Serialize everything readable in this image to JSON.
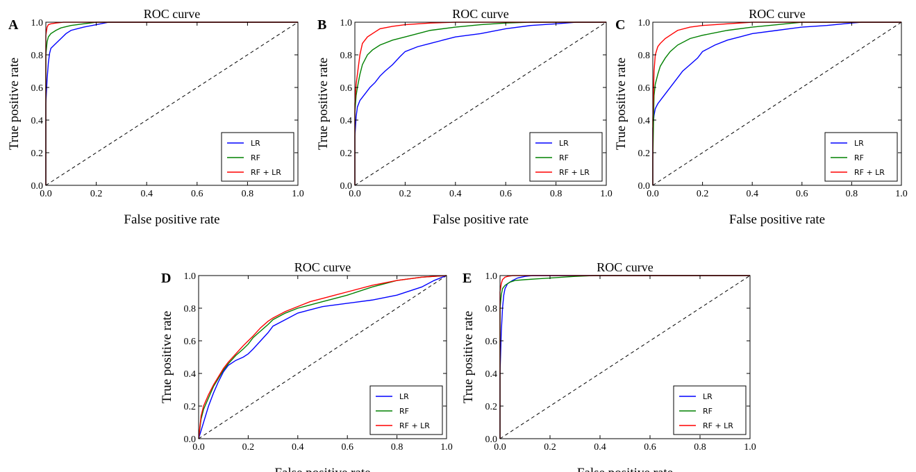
{
  "chart_data": [
    {
      "panel_label": "A",
      "type": "line",
      "title": "ROC curve",
      "xlabel": "False positive rate",
      "ylabel": "True positive rate",
      "xlim": [
        0,
        1
      ],
      "ylim": [
        0,
        1
      ],
      "xticks": [
        "0.0",
        "0.2",
        "0.4",
        "0.6",
        "0.8",
        "1.0"
      ],
      "yticks": [
        "0.0",
        "0.2",
        "0.4",
        "0.6",
        "0.8",
        "1.0"
      ],
      "legend_position": "lower-right",
      "series": [
        {
          "name": "LR",
          "color": "#0000ff",
          "x": [
            0,
            0,
            0.005,
            0.01,
            0.015,
            0.02,
            0.04,
            0.06,
            0.08,
            0.1,
            0.15,
            0.2,
            0.25,
            1.0
          ],
          "y": [
            0,
            0.5,
            0.65,
            0.75,
            0.81,
            0.84,
            0.87,
            0.9,
            0.93,
            0.95,
            0.97,
            0.985,
            1.0,
            1.0
          ]
        },
        {
          "name": "RF",
          "color": "#008000",
          "x": [
            0,
            0,
            0.005,
            0.01,
            0.02,
            0.04,
            0.06,
            0.1,
            0.15,
            0.2,
            1.0
          ],
          "y": [
            0,
            0.8,
            0.88,
            0.91,
            0.93,
            0.95,
            0.965,
            0.98,
            0.99,
            1.0,
            1.0
          ]
        },
        {
          "name": "RF + LR",
          "color": "#ff0000",
          "x": [
            0,
            0,
            0.005,
            0.01,
            0.02,
            0.04,
            0.07,
            1.0
          ],
          "y": [
            0,
            0.92,
            0.97,
            0.985,
            0.99,
            0.995,
            1.0,
            1.0
          ]
        }
      ]
    },
    {
      "panel_label": "B",
      "type": "line",
      "title": "ROC curve",
      "xlabel": "False positive rate",
      "ylabel": "True positive rate",
      "xlim": [
        0,
        1
      ],
      "ylim": [
        0,
        1
      ],
      "xticks": [
        "0.0",
        "0.2",
        "0.4",
        "0.6",
        "0.8",
        "1.0"
      ],
      "yticks": [
        "0.0",
        "0.2",
        "0.4",
        "0.6",
        "0.8",
        "1.0"
      ],
      "legend_position": "lower-right",
      "series": [
        {
          "name": "LR",
          "color": "#0000ff",
          "x": [
            0,
            0,
            0.005,
            0.01,
            0.02,
            0.04,
            0.06,
            0.08,
            0.1,
            0.12,
            0.15,
            0.18,
            0.2,
            0.25,
            0.3,
            0.35,
            0.4,
            0.5,
            0.6,
            0.7,
            0.8,
            0.88,
            1.0
          ],
          "y": [
            0,
            0.3,
            0.42,
            0.48,
            0.52,
            0.56,
            0.6,
            0.63,
            0.67,
            0.7,
            0.74,
            0.79,
            0.82,
            0.85,
            0.87,
            0.89,
            0.91,
            0.93,
            0.96,
            0.98,
            0.99,
            1.0,
            1.0
          ]
        },
        {
          "name": "RF",
          "color": "#008000",
          "x": [
            0,
            0,
            0.005,
            0.01,
            0.02,
            0.03,
            0.05,
            0.07,
            0.1,
            0.15,
            0.2,
            0.3,
            0.4,
            0.5,
            0.6,
            0.7,
            1.0
          ],
          "y": [
            0,
            0.45,
            0.55,
            0.6,
            0.68,
            0.74,
            0.8,
            0.83,
            0.86,
            0.89,
            0.91,
            0.95,
            0.97,
            0.985,
            0.995,
            1.0,
            1.0
          ]
        },
        {
          "name": "RF + LR",
          "color": "#ff0000",
          "x": [
            0,
            0,
            0.005,
            0.01,
            0.02,
            0.03,
            0.05,
            0.08,
            0.1,
            0.15,
            0.2,
            0.3,
            0.4,
            0.5,
            1.0
          ],
          "y": [
            0,
            0.5,
            0.62,
            0.68,
            0.8,
            0.87,
            0.91,
            0.94,
            0.96,
            0.975,
            0.985,
            0.995,
            1.0,
            1.0,
            1.0
          ]
        }
      ]
    },
    {
      "panel_label": "C",
      "type": "line",
      "title": "ROC curve",
      "xlabel": "False positive rate",
      "ylabel": "True positive rate",
      "xlim": [
        0,
        1
      ],
      "ylim": [
        0,
        1
      ],
      "xticks": [
        "0.0",
        "0.2",
        "0.4",
        "0.6",
        "0.8",
        "1.0"
      ],
      "yticks": [
        "0.0",
        "0.2",
        "0.4",
        "0.6",
        "0.8",
        "1.0"
      ],
      "legend_position": "lower-right",
      "series": [
        {
          "name": "LR",
          "color": "#0000ff",
          "x": [
            0,
            0,
            0.005,
            0.01,
            0.02,
            0.04,
            0.06,
            0.08,
            0.1,
            0.12,
            0.15,
            0.18,
            0.2,
            0.25,
            0.3,
            0.35,
            0.4,
            0.5,
            0.6,
            0.7,
            0.8,
            0.84,
            1.0
          ],
          "y": [
            0,
            0.35,
            0.43,
            0.47,
            0.5,
            0.54,
            0.58,
            0.62,
            0.66,
            0.7,
            0.74,
            0.78,
            0.82,
            0.86,
            0.89,
            0.91,
            0.93,
            0.95,
            0.97,
            0.98,
            0.995,
            1.0,
            1.0
          ]
        },
        {
          "name": "RF",
          "color": "#008000",
          "x": [
            0,
            0,
            0.005,
            0.01,
            0.02,
            0.03,
            0.05,
            0.07,
            0.1,
            0.15,
            0.2,
            0.3,
            0.4,
            0.5,
            0.6,
            1.0
          ],
          "y": [
            0,
            0.15,
            0.55,
            0.62,
            0.68,
            0.73,
            0.78,
            0.82,
            0.86,
            0.9,
            0.92,
            0.95,
            0.97,
            0.985,
            1.0,
            1.0
          ]
        },
        {
          "name": "RF + LR",
          "color": "#ff0000",
          "x": [
            0,
            0,
            0.005,
            0.01,
            0.02,
            0.03,
            0.05,
            0.08,
            0.1,
            0.15,
            0.2,
            0.3,
            0.4,
            1.0
          ],
          "y": [
            0,
            0.4,
            0.7,
            0.8,
            0.85,
            0.87,
            0.9,
            0.93,
            0.95,
            0.97,
            0.98,
            0.99,
            1.0,
            1.0
          ]
        }
      ]
    },
    {
      "panel_label": "D",
      "type": "line",
      "title": "ROC curve",
      "xlabel": "False positive rate",
      "ylabel": "True positive rate",
      "xlim": [
        0,
        1
      ],
      "ylim": [
        0,
        1
      ],
      "xticks": [
        "0.0",
        "0.2",
        "0.4",
        "0.6",
        "0.8",
        "1.0"
      ],
      "yticks": [
        "0.0",
        "0.2",
        "0.4",
        "0.6",
        "0.8",
        "1.0"
      ],
      "legend_position": "lower-right",
      "series": [
        {
          "name": "LR",
          "color": "#0000ff",
          "x": [
            0,
            0.02,
            0.04,
            0.06,
            0.08,
            0.1,
            0.12,
            0.15,
            0.18,
            0.2,
            0.22,
            0.25,
            0.28,
            0.3,
            0.35,
            0.4,
            0.45,
            0.5,
            0.6,
            0.7,
            0.8,
            0.9,
            0.95,
            1.0
          ],
          "y": [
            0,
            0.1,
            0.2,
            0.28,
            0.35,
            0.41,
            0.45,
            0.48,
            0.5,
            0.52,
            0.55,
            0.6,
            0.65,
            0.69,
            0.73,
            0.77,
            0.79,
            0.81,
            0.83,
            0.85,
            0.88,
            0.93,
            0.97,
            1.0
          ]
        },
        {
          "name": "RF",
          "color": "#008000",
          "x": [
            0,
            0.01,
            0.02,
            0.04,
            0.06,
            0.08,
            0.1,
            0.12,
            0.15,
            0.18,
            0.2,
            0.22,
            0.25,
            0.28,
            0.3,
            0.35,
            0.4,
            0.45,
            0.5,
            0.55,
            0.6,
            0.7,
            0.8,
            0.9,
            1.0
          ],
          "y": [
            0,
            0.12,
            0.18,
            0.25,
            0.32,
            0.37,
            0.42,
            0.46,
            0.51,
            0.55,
            0.58,
            0.62,
            0.66,
            0.7,
            0.73,
            0.77,
            0.8,
            0.82,
            0.84,
            0.86,
            0.88,
            0.93,
            0.97,
            0.99,
            1.0
          ]
        },
        {
          "name": "RF + LR",
          "color": "#ff0000",
          "x": [
            0,
            0.01,
            0.02,
            0.04,
            0.06,
            0.08,
            0.1,
            0.12,
            0.15,
            0.18,
            0.2,
            0.22,
            0.25,
            0.28,
            0.3,
            0.35,
            0.4,
            0.45,
            0.5,
            0.55,
            0.6,
            0.7,
            0.8,
            0.9,
            1.0
          ],
          "y": [
            0,
            0.14,
            0.2,
            0.27,
            0.33,
            0.38,
            0.43,
            0.47,
            0.52,
            0.57,
            0.6,
            0.63,
            0.68,
            0.72,
            0.74,
            0.78,
            0.81,
            0.84,
            0.86,
            0.88,
            0.9,
            0.94,
            0.97,
            0.99,
            1.0
          ]
        }
      ]
    },
    {
      "panel_label": "E",
      "type": "line",
      "title": "ROC curve",
      "xlabel": "False positive rate",
      "ylabel": "True positive rate",
      "xlim": [
        0,
        1
      ],
      "ylim": [
        0,
        1
      ],
      "xticks": [
        "0.0",
        "0.2",
        "0.4",
        "0.6",
        "0.8",
        "1.0"
      ],
      "yticks": [
        "0.0",
        "0.2",
        "0.4",
        "0.6",
        "0.8",
        "1.0"
      ],
      "legend_position": "lower-right",
      "series": [
        {
          "name": "LR",
          "color": "#0000ff",
          "x": [
            0,
            0,
            0.005,
            0.01,
            0.015,
            0.02,
            0.03,
            0.05,
            0.07,
            0.1,
            0.13,
            1.0
          ],
          "y": [
            0,
            0.4,
            0.65,
            0.8,
            0.88,
            0.92,
            0.95,
            0.97,
            0.985,
            0.995,
            1.0,
            1.0
          ]
        },
        {
          "name": "RF",
          "color": "#008000",
          "x": [
            0,
            0,
            0.005,
            0.01,
            0.02,
            0.04,
            0.06,
            0.1,
            0.15,
            0.2,
            0.25,
            0.3,
            0.35,
            0.37,
            1.0
          ],
          "y": [
            0,
            0.8,
            0.88,
            0.92,
            0.94,
            0.96,
            0.97,
            0.975,
            0.98,
            0.985,
            0.99,
            0.995,
            0.998,
            1.0,
            1.0
          ]
        },
        {
          "name": "RF + LR",
          "color": "#ff0000",
          "x": [
            0,
            0,
            0.005,
            0.01,
            0.02,
            0.03,
            0.05,
            1.0
          ],
          "y": [
            0,
            0.9,
            0.95,
            0.975,
            0.99,
            0.995,
            1.0,
            1.0
          ]
        }
      ]
    }
  ]
}
